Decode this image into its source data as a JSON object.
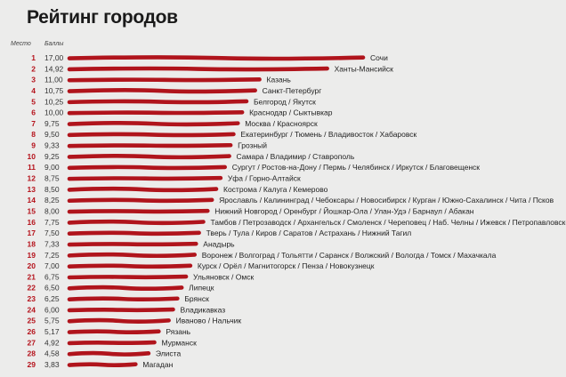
{
  "title": "Рейтинг городов",
  "chart_data": {
    "type": "bar",
    "orientation": "horizontal",
    "title": "Рейтинг городов",
    "column_headers": {
      "rank": "Место",
      "score": "Баллы"
    },
    "bar_color": "#b0141c",
    "grid": false,
    "xlim": [
      0,
      17
    ],
    "rows": [
      {
        "rank": "1",
        "score_label": "17,00",
        "value": 17.0,
        "cities": "Сочи"
      },
      {
        "rank": "2",
        "score_label": "14,92",
        "value": 14.92,
        "cities": "Ханты-Мансийск"
      },
      {
        "rank": "3",
        "score_label": "11,00",
        "value": 11.0,
        "cities": "Казань"
      },
      {
        "rank": "4",
        "score_label": "10,75",
        "value": 10.75,
        "cities": "Санкт-Петербург"
      },
      {
        "rank": "5",
        "score_label": "10,25",
        "value": 10.25,
        "cities": "Белгород / Якутск"
      },
      {
        "rank": "6",
        "score_label": "10,00",
        "value": 10.0,
        "cities": "Краснодар / Сыктывкар"
      },
      {
        "rank": "7",
        "score_label": "9,75",
        "value": 9.75,
        "cities": "Москва / Красноярск"
      },
      {
        "rank": "8",
        "score_label": "9,50",
        "value": 9.5,
        "cities": "Екатеринбург / Тюмень / Владивосток / Хабаровск"
      },
      {
        "rank": "9",
        "score_label": "9,33",
        "value": 9.33,
        "cities": "Грозный"
      },
      {
        "rank": "10",
        "score_label": "9,25",
        "value": 9.25,
        "cities": "Самара / Владимир / Ставрополь"
      },
      {
        "rank": "11",
        "score_label": "9,00",
        "value": 9.0,
        "cities": "Сургут / Ростов-на-Дону / Пермь / Челябинск / Иркутск / Благовещенск"
      },
      {
        "rank": "12",
        "score_label": "8,75",
        "value": 8.75,
        "cities": "Уфа / Горно-Алтайск"
      },
      {
        "rank": "13",
        "score_label": "8,50",
        "value": 8.5,
        "cities": "Кострома / Калуга / Кемерово"
      },
      {
        "rank": "14",
        "score_label": "8,25",
        "value": 8.25,
        "cities": "Ярославль / Калининград / Чебоксары / Новосибирск / Курган / Южно-Сахалинск / Чита / Псков"
      },
      {
        "rank": "15",
        "score_label": "8,00",
        "value": 8.0,
        "cities": "Нижний Новгород / Оренбург / Йошкар-Ола / Улан-Удэ / Барнаул / Абакан"
      },
      {
        "rank": "16",
        "score_label": "7,75",
        "value": 7.75,
        "cities": "Тамбов / Петрозаводск / Архангельск / Смоленск / Череповец / Наб. Челны / Ижевск / Петропавловск-Камчатский"
      },
      {
        "rank": "17",
        "score_label": "7,50",
        "value": 7.5,
        "cities": "Тверь / Тула / Киров / Саратов / Астрахань / Нижний Тагил"
      },
      {
        "rank": "18",
        "score_label": "7,33",
        "value": 7.33,
        "cities": "Анадырь"
      },
      {
        "rank": "19",
        "score_label": "7,25",
        "value": 7.25,
        "cities": "Воронеж / Волгоград / Тольятти / Саранск / Волжский / Вологда / Томск / Махачкала"
      },
      {
        "rank": "20",
        "score_label": "7,00",
        "value": 7.0,
        "cities": "Курск / Орёл / Магнитогорск / Пенза / Новокузнецк"
      },
      {
        "rank": "21",
        "score_label": "6,75",
        "value": 6.75,
        "cities": "Ульяновск / Омск"
      },
      {
        "rank": "22",
        "score_label": "6,50",
        "value": 6.5,
        "cities": "Липецк"
      },
      {
        "rank": "23",
        "score_label": "6,25",
        "value": 6.25,
        "cities": "Брянск"
      },
      {
        "rank": "24",
        "score_label": "6,00",
        "value": 6.0,
        "cities": "Владикавказ"
      },
      {
        "rank": "25",
        "score_label": "5,75",
        "value": 5.75,
        "cities": "Иваново / Нальчик"
      },
      {
        "rank": "26",
        "score_label": "5,17",
        "value": 5.17,
        "cities": "Рязань"
      },
      {
        "rank": "27",
        "score_label": "4,92",
        "value": 4.92,
        "cities": "Мурманск"
      },
      {
        "rank": "28",
        "score_label": "4,58",
        "value": 4.58,
        "cities": "Элиста"
      },
      {
        "rank": "29",
        "score_label": "3,83",
        "value": 3.83,
        "cities": "Магадан"
      }
    ]
  }
}
